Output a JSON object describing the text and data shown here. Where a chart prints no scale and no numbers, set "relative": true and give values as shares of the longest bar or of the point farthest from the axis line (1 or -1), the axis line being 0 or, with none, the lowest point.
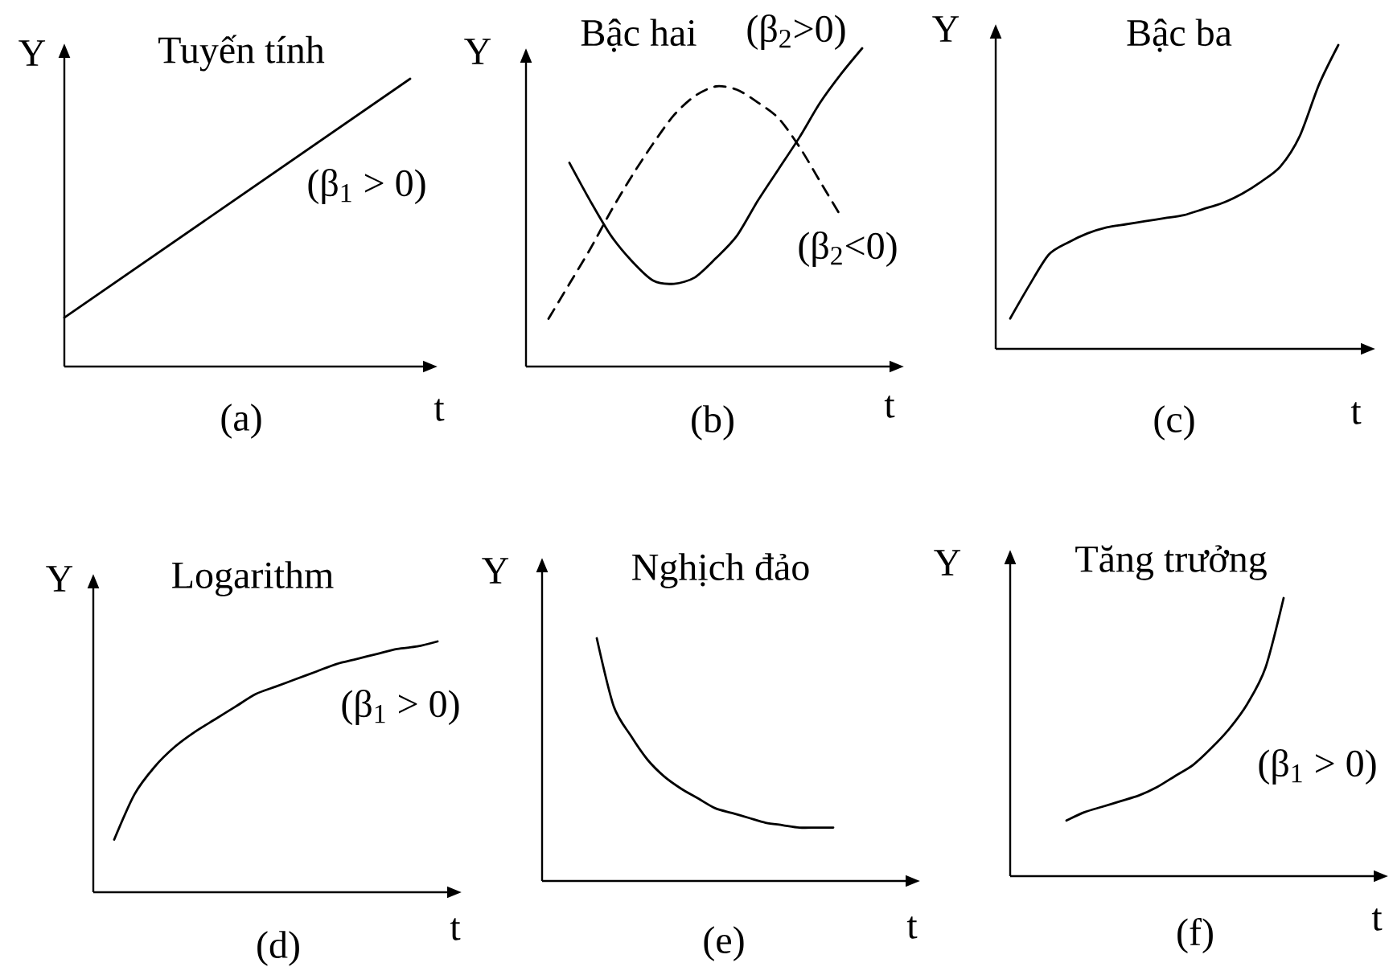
{
  "chart_data": [
    {
      "type": "line",
      "title": "Tuyến tính",
      "xlabel": "t",
      "ylabel": "Y",
      "categories": [
        null,
        null
      ],
      "relative": true,
      "series": [
        {
          "name": "(β$_{1}$ > 0)",
          "color": "#000000",
          "line_style": "solid",
          "values": [
            0.17,
            1.0
          ]
        }
      ],
      "annotations": [
        "(a)"
      ]
    },
    {
      "type": "line",
      "title": "Bậc hai",
      "xlabel": "t",
      "ylabel": "Y",
      "categories": [
        null,
        null,
        null,
        null,
        null,
        null,
        null,
        null,
        null,
        null,
        null,
        null,
        null,
        null,
        null,
        null
      ],
      "relative": true,
      "series": [
        {
          "name": "(β$_{2}$>0)",
          "color": "#000000",
          "line_style": "solid",
          "values": [
            null,
            0.64,
            0.52,
            0.41,
            0.33,
            0.27,
            0.26,
            0.28,
            0.34,
            0.41,
            0.52,
            0.62,
            0.72,
            0.83,
            0.92,
            1.0
          ]
        },
        {
          "name": "(β$_{2}$<0)",
          "color": "#000000",
          "line_style": "dashed",
          "values": [
            0.15,
            0.26,
            0.37,
            0.49,
            0.6,
            0.7,
            0.79,
            0.85,
            0.88,
            0.87,
            0.83,
            0.78,
            0.69,
            0.58,
            0.47,
            null
          ]
        }
      ],
      "annotations": [
        "(b)"
      ]
    },
    {
      "type": "line",
      "title": "Bậc ba",
      "xlabel": "t",
      "ylabel": "Y",
      "categories": [
        null,
        null,
        null,
        null,
        null,
        null,
        null,
        null,
        null,
        null,
        null,
        null,
        null,
        null,
        null,
        null,
        null,
        null
      ],
      "relative": true,
      "series": [
        {
          "color": "#000000",
          "line_style": "solid",
          "values": [
            0.1,
            0.21,
            0.31,
            0.35,
            0.38,
            0.4,
            0.41,
            0.42,
            0.43,
            0.44,
            0.46,
            0.48,
            0.51,
            0.55,
            0.6,
            0.7,
            0.87,
            1.0
          ]
        }
      ],
      "annotations": [
        "(c)"
      ]
    },
    {
      "type": "line",
      "title": "Logarithm",
      "xlabel": "t",
      "ylabel": "Y",
      "categories": [
        null,
        null,
        null,
        null,
        null,
        null,
        null,
        null,
        null,
        null,
        null,
        null,
        null,
        null,
        null,
        null,
        null
      ],
      "relative": true,
      "series": [
        {
          "name": "(β$_{1}$ > 0)",
          "color": "#000000",
          "line_style": "solid",
          "values": [
            0.21,
            0.39,
            0.5,
            0.58,
            0.64,
            0.69,
            0.74,
            0.79,
            0.82,
            0.85,
            0.88,
            0.91,
            0.93,
            0.95,
            0.97,
            0.98,
            1.0
          ]
        }
      ],
      "annotations": [
        "(d)"
      ]
    },
    {
      "type": "line",
      "title": "Nghịch đảo",
      "xlabel": "t",
      "ylabel": "Y",
      "categories": [
        null,
        null,
        null,
        null,
        null,
        null,
        null,
        null,
        null,
        null,
        null,
        null,
        null,
        null,
        null
      ],
      "relative": true,
      "series": [
        {
          "color": "#000000",
          "line_style": "solid",
          "values": [
            1.0,
            0.72,
            0.6,
            0.5,
            0.43,
            0.38,
            0.34,
            0.3,
            0.28,
            0.26,
            0.24,
            0.23,
            0.22,
            0.22,
            0.22
          ]
        }
      ],
      "annotations": [
        "(e)"
      ]
    },
    {
      "type": "line",
      "title": "Tăng trưởng",
      "xlabel": "t",
      "ylabel": "Y",
      "categories": [
        null,
        null,
        null,
        null,
        null,
        null,
        null,
        null,
        null,
        null,
        null,
        null,
        null
      ],
      "relative": true,
      "series": [
        {
          "name": "(β$_{1}$ > 0)",
          "color": "#000000",
          "line_style": "solid",
          "values": [
            0.2,
            0.23,
            0.25,
            0.27,
            0.29,
            0.32,
            0.36,
            0.4,
            0.46,
            0.53,
            0.62,
            0.75,
            1.0
          ]
        }
      ],
      "annotations": [
        "(f)"
      ]
    }
  ]
}
